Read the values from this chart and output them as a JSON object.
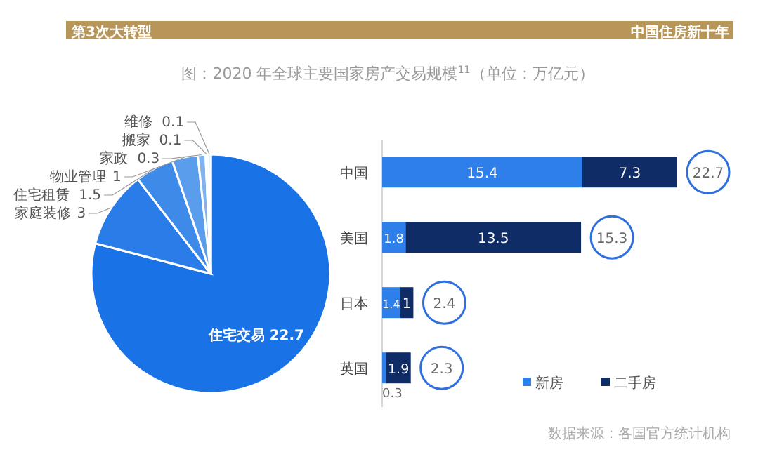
{
  "chart_data": [
    {
      "type": "pie",
      "title": "图：2020 年全球主要国家房产交易规模$^{11}$（单位：万亿元）",
      "categories": [
        "住宅交易",
        "家庭装修",
        "住宅租赁",
        "物业管理",
        "家政",
        "搬家",
        "维修"
      ],
      "values": [
        22.7,
        3,
        1.5,
        1,
        0.3,
        0.1,
        0.1
      ],
      "colors": [
        "#1a73e6",
        "#2a7de8",
        "#3d8ae8",
        "#5b9ded",
        "#7fb3f0",
        "#a7cbf4",
        "#cfe1f8"
      ],
      "data_labels": true,
      "annotations": [
        "第3次大转型",
        "中国住房新十年"
      ]
    },
    {
      "type": "bar",
      "orientation": "horizontal",
      "stacked": true,
      "categories": [
        "中国",
        "美国",
        "日本",
        "英国"
      ],
      "series": [
        {
          "name": "新房",
          "color": "#2f7fea",
          "values": [
            15.4,
            1.8,
            1.4,
            0.3
          ]
        },
        {
          "name": "二手房",
          "color": "#102c66",
          "values": [
            7.3,
            13.5,
            1,
            1.9
          ]
        }
      ],
      "data_labels": true,
      "totals": [
        "22.7",
        "15.3",
        "2.4",
        "2.3"
      ],
      "legend": "bottom",
      "annotations": [
        "数据来源：各国官方统计机构"
      ]
    }
  ]
}
